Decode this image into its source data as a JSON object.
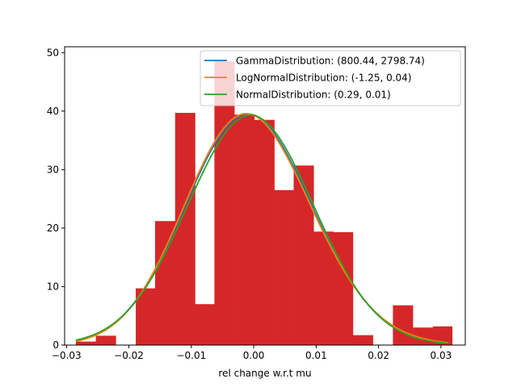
{
  "chart_data": {
    "type": "bar",
    "xlabel": "rel change w.r.t mu",
    "ylabel": "",
    "xlim": [
      -0.0303,
      0.0339
    ],
    "ylim": [
      0,
      51
    ],
    "xticks": [
      -0.03,
      -0.02,
      -0.01,
      0.0,
      0.01,
      0.02,
      0.03
    ],
    "xtick_labels": [
      "−0.03",
      "−0.02",
      "−0.01",
      "0.00",
      "0.01",
      "0.02",
      "0.03"
    ],
    "yticks": [
      0,
      10,
      20,
      30,
      40,
      50
    ],
    "ytick_labels": [
      "0",
      "10",
      "20",
      "30",
      "40",
      "50"
    ],
    "grid": false,
    "legend_position": "top-right",
    "histogram": {
      "color": "#d62728",
      "bins": [
        {
          "x0": -0.0285,
          "x1": -0.0253,
          "value": 0.6
        },
        {
          "x0": -0.0253,
          "x1": -0.0221,
          "value": 1.6
        },
        {
          "x0": -0.0221,
          "x1": -0.0189,
          "value": 0
        },
        {
          "x0": -0.0189,
          "x1": -0.0158,
          "value": 9.7
        },
        {
          "x0": -0.0158,
          "x1": -0.0126,
          "value": 21.2
        },
        {
          "x0": -0.0126,
          "x1": -0.0094,
          "value": 39.7
        },
        {
          "x0": -0.0094,
          "x1": -0.0063,
          "value": 7.0
        },
        {
          "x0": -0.0063,
          "x1": -0.0031,
          "value": 48.5
        },
        {
          "x0": -0.0031,
          "x1": 0.0001,
          "value": 39.4
        },
        {
          "x0": 0.0001,
          "x1": 0.0033,
          "value": 38.5
        },
        {
          "x0": 0.0033,
          "x1": 0.0064,
          "value": 26.5
        },
        {
          "x0": 0.0064,
          "x1": 0.0096,
          "value": 30.7
        },
        {
          "x0": 0.0096,
          "x1": 0.0128,
          "value": 19.4
        },
        {
          "x0": 0.0128,
          "x1": 0.0159,
          "value": 19.3
        },
        {
          "x0": 0.0159,
          "x1": 0.0191,
          "value": 1.7
        },
        {
          "x0": 0.0191,
          "x1": 0.0223,
          "value": 0
        },
        {
          "x0": 0.0223,
          "x1": 0.0255,
          "value": 6.8
        },
        {
          "x0": 0.0255,
          "x1": 0.0287,
          "value": 3.0
        },
        {
          "x0": 0.0287,
          "x1": 0.0318,
          "value": 3.2
        }
      ]
    },
    "series": [
      {
        "name": "GammaDistribution: (800.44, 2798.74)",
        "color": "#1f77b4",
        "kind": "gamma",
        "params": {
          "mean": -0.0006,
          "std": 0.0101,
          "skew": 0.0707,
          "peak": 39.5
        }
      },
      {
        "name": "LogNormalDistribution: (-1.25, 0.04)",
        "color": "#ff7f0e",
        "kind": "lognormal",
        "params": {
          "mean": -0.0006,
          "std": 0.0101,
          "skew": 0.12,
          "peak": 39.5
        }
      },
      {
        "name": "NormalDistribution: (0.29, 0.01)",
        "color": "#2ca02c",
        "kind": "normal",
        "params": {
          "mean": -0.0005,
          "std": 0.0101,
          "skew": 0,
          "peak": 39.3
        }
      }
    ],
    "curve_x_range": [
      -0.0285,
      0.0312
    ]
  }
}
